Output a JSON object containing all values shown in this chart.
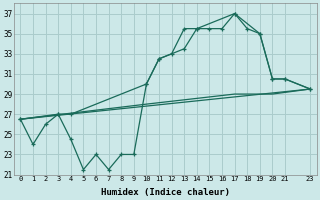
{
  "xlabel": "Humidex (Indice chaleur)",
  "background_color": "#cce8e8",
  "grid_color": "#aacccc",
  "line_color": "#1a6b5a",
  "xlim": [
    -0.5,
    23.5
  ],
  "ylim": [
    21,
    38
  ],
  "yticks": [
    21,
    23,
    25,
    27,
    29,
    31,
    33,
    35,
    37
  ],
  "xticks": [
    0,
    1,
    2,
    3,
    4,
    5,
    6,
    7,
    8,
    9,
    10,
    11,
    12,
    13,
    14,
    15,
    16,
    17,
    18,
    19,
    20,
    21,
    23
  ],
  "series": [
    {
      "x": [
        0,
        1,
        2,
        3,
        4,
        5,
        6,
        7,
        8,
        9,
        10,
        11,
        12,
        13,
        14,
        15,
        16,
        17,
        18,
        19,
        20,
        21,
        23
      ],
      "y": [
        26.5,
        24.0,
        26.0,
        27.0,
        24.5,
        21.5,
        23.0,
        21.5,
        23.0,
        23.0,
        30.0,
        32.5,
        33.0,
        35.5,
        35.5,
        35.5,
        35.5,
        37.0,
        35.5,
        35.0,
        30.5,
        30.5,
        29.5
      ],
      "marker": "+",
      "lw": 0.9
    },
    {
      "x": [
        0,
        3,
        4,
        10,
        11,
        13,
        14,
        17,
        19,
        20,
        21,
        23
      ],
      "y": [
        26.5,
        27.0,
        27.0,
        30.0,
        32.5,
        33.5,
        35.5,
        37.0,
        35.0,
        30.5,
        30.5,
        29.5
      ],
      "marker": "+",
      "lw": 0.9
    },
    {
      "x": [
        0,
        23
      ],
      "y": [
        26.5,
        29.5
      ],
      "marker": null,
      "lw": 0.9
    },
    {
      "x": [
        0,
        10,
        17,
        20,
        23
      ],
      "y": [
        26.5,
        28.0,
        29.0,
        29.0,
        29.5
      ],
      "marker": null,
      "lw": 0.9
    }
  ]
}
